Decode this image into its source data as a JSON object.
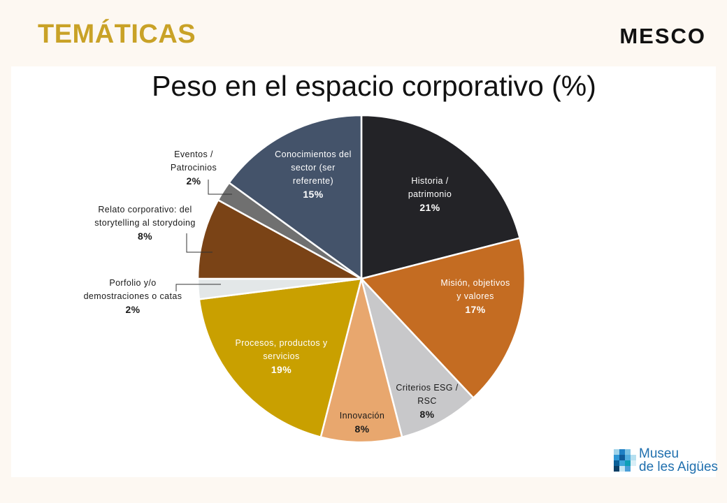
{
  "header": {
    "title": "TEMÁTICAS",
    "brand": "MESCO"
  },
  "footer": {
    "museum_line1": "Museu",
    "museum_line2": "de les Aigües"
  },
  "chart_data": {
    "type": "pie",
    "title": "Peso en el espacio corporativo  (%)",
    "start": "top",
    "direction": "clockwise",
    "slices": [
      {
        "label": "Historia / patrimonio",
        "value": 21,
        "value_label": "21%",
        "color": "#232327"
      },
      {
        "label": "Misión, objetivos y valores",
        "value": 17,
        "value_label": "17%",
        "color": "#c46c22"
      },
      {
        "label": "Criterios ESG / RSC",
        "value": 8,
        "value_label": "8%",
        "color": "#c8c8ca"
      },
      {
        "label": "Innovación",
        "value": 8,
        "value_label": "8%",
        "color": "#e8a76e"
      },
      {
        "label": "Procesos, productos y servicios",
        "value": 19,
        "value_label": "19%",
        "color": "#c9a000"
      },
      {
        "label": "Porfolio y/o demostraciones o catas",
        "value": 2,
        "value_label": "2%",
        "color": "#e3e7e8"
      },
      {
        "label": "Relato corporativo: del storytelling al storydoing",
        "value": 8,
        "value_label": "8%",
        "color": "#7a4316"
      },
      {
        "label": "Eventos / Patrocinios",
        "value": 2,
        "value_label": "2%",
        "color": "#707070"
      },
      {
        "label": "Conocimientos del sector (ser referente)",
        "value": 15,
        "value_label": "15%",
        "color": "#44536a"
      }
    ]
  }
}
